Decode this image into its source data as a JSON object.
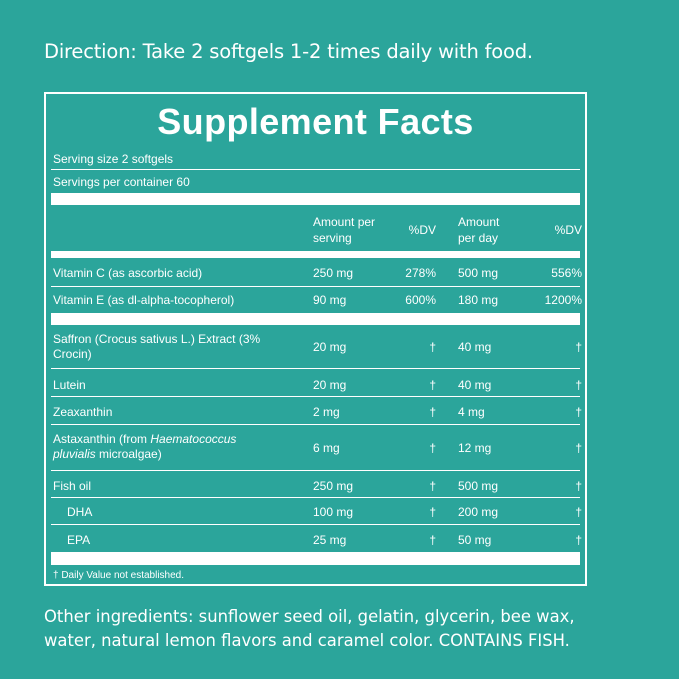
{
  "direction": "Direction: Take 2 softgels 1-2 times daily with food.",
  "facts": {
    "title": "Supplement Facts",
    "serving_size": "Serving size 2 softgels",
    "servings_per_container": "Servings per container 60",
    "headers": {
      "amount_serving_1": "Amount per",
      "amount_serving_2": "serving",
      "dv1": "%DV",
      "amount_day_1": "Amount",
      "amount_day_2": "per day",
      "dv2": "%DV"
    },
    "rows": [
      {
        "name": "Vitamin C (as ascorbic acid)",
        "serving": "250 mg",
        "dv1": "278%",
        "day": "500 mg",
        "dv2": "556%"
      },
      {
        "name": "Vitamin E (as dl-alpha-tocopherol)",
        "serving": "90 mg",
        "dv1": "600%",
        "day": "180 mg",
        "dv2": "1200%"
      },
      {
        "name": "Saffron (Crocus sativus L.) Extract (3%",
        "name2": "Crocin)",
        "serving": "20 mg",
        "dv1": "†",
        "day": "40 mg",
        "dv2": "†"
      },
      {
        "name": "Lutein",
        "serving": "20 mg",
        "dv1": "†",
        "day": "40 mg",
        "dv2": "†"
      },
      {
        "name": "Zeaxanthin",
        "serving": "2 mg",
        "dv1": "†",
        "day": "4 mg",
        "dv2": "†"
      },
      {
        "name_a": "Astaxanthin (from ",
        "name_i": "Haematococcus",
        "name2_i": "pluvialis",
        "name2_b": " microalgae)",
        "serving": "6 mg",
        "dv1": "†",
        "day": "12 mg",
        "dv2": "†"
      },
      {
        "name": "Fish oil",
        "serving": "250 mg",
        "dv1": "†",
        "day": "500 mg",
        "dv2": "†"
      },
      {
        "name": "DHA",
        "serving": "100 mg",
        "dv1": "†",
        "day": "200 mg",
        "dv2": "†"
      },
      {
        "name": "EPA",
        "serving": "25 mg",
        "dv1": "†",
        "day": "50 mg",
        "dv2": "†"
      }
    ],
    "footnote": "† Daily Value not established."
  },
  "other_ingredients_1": "Other ingredients: sunflower seed oil, gelatin, glycerin, bee wax,",
  "other_ingredients_2": "water, natural lemon flavors and caramel color. CONTAINS FISH."
}
